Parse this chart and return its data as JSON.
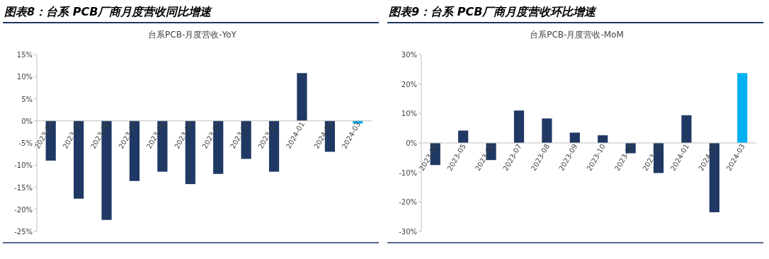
{
  "chart_data": [
    {
      "type": "bar",
      "title": "图表8：台系 PCB厂商月度营收同比增速",
      "subtitle": "台系PCB-月度营收-YoY",
      "categories": [
        "2023-04",
        "2023-05",
        "2023-06",
        "2023-07",
        "2023-08",
        "2023-09",
        "2023-10",
        "2023-11",
        "2023-12",
        "2024-01",
        "2024-02",
        "2024-03"
      ],
      "values": [
        -9,
        -17.6,
        -22.4,
        -13.6,
        -11.5,
        -14.3,
        -12,
        -8.6,
        -11.5,
        10.8,
        -7,
        -0.6
      ],
      "colors": [
        "#1f3864",
        "#1f3864",
        "#1f3864",
        "#1f3864",
        "#1f3864",
        "#1f3864",
        "#1f3864",
        "#1f3864",
        "#1f3864",
        "#1f3864",
        "#1f3864",
        "#00b0f0"
      ],
      "ylim": [
        -25,
        15
      ],
      "yticks": [
        {
          "value": -25,
          "label": "-25%"
        },
        {
          "value": -20,
          "label": "-20%"
        },
        {
          "value": -15,
          "label": "-15%"
        },
        {
          "value": -10,
          "label": "-10%"
        },
        {
          "value": -5,
          "label": "-5%"
        },
        {
          "value": 0,
          "label": "0%"
        },
        {
          "value": 5,
          "label": "5%"
        },
        {
          "value": 10,
          "label": "10%"
        },
        {
          "value": 15,
          "label": "15%"
        }
      ]
    },
    {
      "type": "bar",
      "title": "图表9：台系 PCB厂商月度营收环比增速",
      "subtitle": "台系PCB-月度营收-MoM",
      "categories": [
        "2023-04",
        "2023-05",
        "2023-06",
        "2023-07",
        "2023-08",
        "2023-09",
        "2023-10",
        "2023-11",
        "2023-12",
        "2024-01",
        "2024-02",
        "2024-03"
      ],
      "values": [
        -7.5,
        4.2,
        -5.8,
        11,
        8.3,
        3.5,
        2.6,
        -3.5,
        -10.2,
        9.4,
        -23.5,
        23.7
      ],
      "colors": [
        "#1f3864",
        "#1f3864",
        "#1f3864",
        "#1f3864",
        "#1f3864",
        "#1f3864",
        "#1f3864",
        "#1f3864",
        "#1f3864",
        "#1f3864",
        "#1f3864",
        "#00b0f0"
      ],
      "ylim": [
        -30,
        30
      ],
      "yticks": [
        {
          "value": -30,
          "label": "-30%"
        },
        {
          "value": -20,
          "label": "-20%"
        },
        {
          "value": -10,
          "label": "-10%"
        },
        {
          "value": 0,
          "label": "0%"
        },
        {
          "value": 10,
          "label": "10%"
        },
        {
          "value": 20,
          "label": "20%"
        },
        {
          "value": 30,
          "label": "30%"
        }
      ]
    }
  ]
}
